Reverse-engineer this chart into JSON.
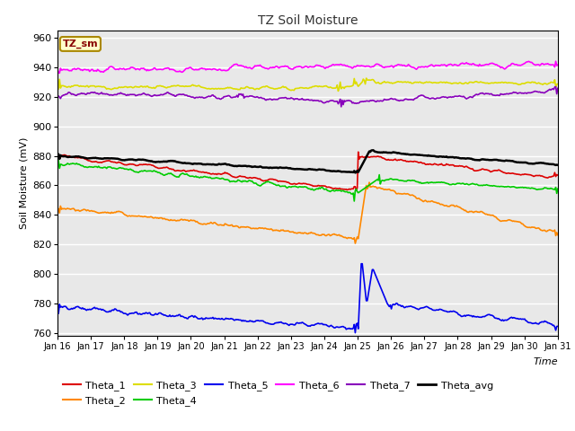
{
  "title": "TZ Soil Moisture",
  "xlabel": "Time",
  "ylabel": "Soil Moisture (mV)",
  "ylim": [
    758,
    965
  ],
  "yticks": [
    760,
    780,
    800,
    820,
    840,
    860,
    880,
    900,
    920,
    940,
    960
  ],
  "x_labels": [
    "Jan 16",
    "Jan 17",
    "Jan 18",
    "Jan 19",
    "Jan 20",
    "Jan 21",
    "Jan 22",
    "Jan 23",
    "Jan 24",
    "Jan 25",
    "Jan 26",
    "Jan 27",
    "Jan 28",
    "Jan 29",
    "Jan 30",
    "Jan 31"
  ],
  "n_points": 500,
  "series": {
    "Theta_1": {
      "color": "#DD0000",
      "linewidth": 1.2
    },
    "Theta_2": {
      "color": "#FF8800",
      "linewidth": 1.2
    },
    "Theta_3": {
      "color": "#DDDD00",
      "linewidth": 1.2
    },
    "Theta_4": {
      "color": "#00CC00",
      "linewidth": 1.2
    },
    "Theta_5": {
      "color": "#0000EE",
      "linewidth": 1.2
    },
    "Theta_6": {
      "color": "#FF00FF",
      "linewidth": 1.2
    },
    "Theta_7": {
      "color": "#8800BB",
      "linewidth": 1.2
    },
    "Theta_avg": {
      "color": "#000000",
      "linewidth": 1.8
    }
  },
  "background_color": "#E8E8E8",
  "grid_color": "#FFFFFF",
  "annotation_text": "TZ_sm",
  "annotation_bg": "#FFFFCC",
  "annotation_border": "#AA8800"
}
